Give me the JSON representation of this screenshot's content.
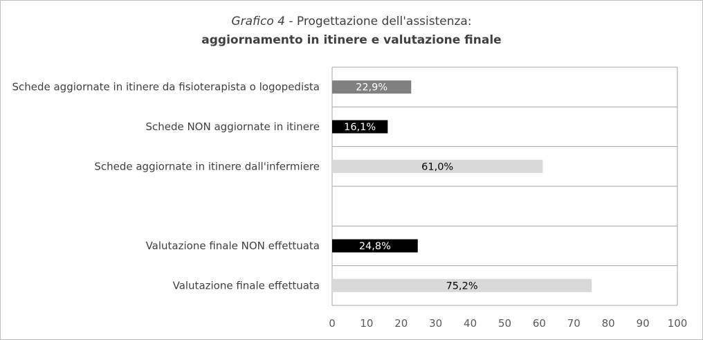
{
  "title": {
    "italic": "Grafico 4",
    "rest": " - Progettazione dell'assistenza:",
    "line2": "aggiornamento in itinere e valutazione finale"
  },
  "chart_data": {
    "type": "bar",
    "orientation": "horizontal",
    "categories": [
      "Schede aggiornate in itinere da fisioterapista o logopedista",
      "Schede NON aggiornate in itinere",
      "Schede aggiornate in itinere dall'infermiere",
      "",
      "Valutazione finale NON effettuata",
      "Valutazione finale effettuata"
    ],
    "values": [
      22.9,
      16.1,
      61.0,
      null,
      24.8,
      75.2
    ],
    "data_labels": [
      "22,9%",
      "16,1%",
      "61,0%",
      "",
      "24,8%",
      "75,2%"
    ],
    "bar_colors": [
      "#808080",
      "#000000",
      "#d9d9d9",
      null,
      "#000000",
      "#d9d9d9"
    ],
    "label_colors": [
      "#ffffff",
      "#ffffff",
      "#000000",
      null,
      "#ffffff",
      "#000000"
    ],
    "xlim": [
      0,
      100
    ],
    "xticks": [
      0,
      10,
      20,
      30,
      40,
      50,
      60,
      70,
      80,
      90,
      100
    ],
    "grid": true,
    "legend": "none"
  }
}
